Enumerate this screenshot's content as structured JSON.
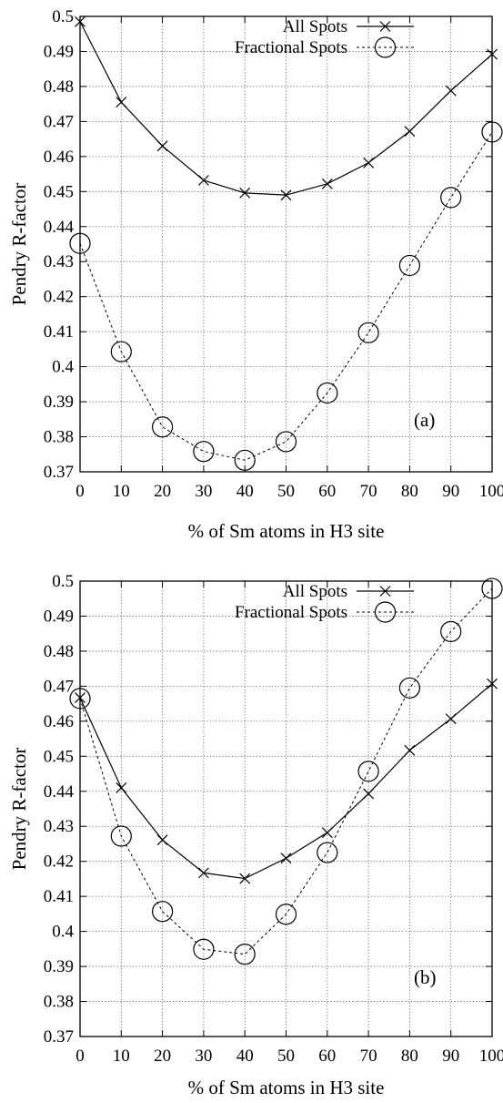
{
  "chart_data": [
    {
      "type": "line",
      "panel_label": "(a)",
      "xlabel": "% of Sm atoms in H3 site",
      "ylabel": "Pendry R-factor",
      "x": [
        0,
        10,
        20,
        30,
        40,
        50,
        60,
        70,
        80,
        90,
        100
      ],
      "xlim": [
        0,
        100
      ],
      "ylim": [
        0.37,
        0.5
      ],
      "x_ticks": [
        "0",
        "10",
        "20",
        "30",
        "40",
        "50",
        "60",
        "70",
        "80",
        "90",
        "100"
      ],
      "y_ticks": [
        "0.37",
        "0.38",
        "0.39",
        "0.4",
        "0.41",
        "0.42",
        "0.43",
        "0.44",
        "0.45",
        "0.46",
        "0.47",
        "0.48",
        "0.49",
        "0.5"
      ],
      "grid": true,
      "legend_position": "top-right",
      "series": [
        {
          "name": "All Spots",
          "marker": "x",
          "line": "solid",
          "values": [
            0.4985,
            0.4755,
            0.463,
            0.4532,
            0.4496,
            0.449,
            0.4522,
            0.4582,
            0.4672,
            0.4788,
            0.4892
          ]
        },
        {
          "name": "Fractional Spots",
          "marker": "circle",
          "line": "dashed",
          "values": [
            0.4352,
            0.4043,
            0.3828,
            0.3758,
            0.3733,
            0.3786,
            0.3925,
            0.4097,
            0.4289,
            0.4483,
            0.467
          ]
        }
      ]
    },
    {
      "type": "line",
      "panel_label": "(b)",
      "xlabel": "% of Sm atoms in H3 site",
      "ylabel": "Pendry R-factor",
      "x": [
        0,
        10,
        20,
        30,
        40,
        50,
        60,
        70,
        80,
        90,
        100
      ],
      "xlim": [
        0,
        100
      ],
      "ylim": [
        0.37,
        0.5
      ],
      "x_ticks": [
        "0",
        "10",
        "20",
        "30",
        "40",
        "50",
        "60",
        "70",
        "80",
        "90",
        "100"
      ],
      "y_ticks": [
        "0.37",
        "0.38",
        "0.39",
        "0.4",
        "0.41",
        "0.42",
        "0.43",
        "0.44",
        "0.45",
        "0.46",
        "0.47",
        "0.48",
        "0.49",
        "0.5"
      ],
      "grid": true,
      "legend_position": "top-right",
      "series": [
        {
          "name": "All Spots",
          "marker": "x",
          "line": "solid",
          "values": [
            0.4667,
            0.441,
            0.4261,
            0.4167,
            0.4151,
            0.4209,
            0.4282,
            0.4393,
            0.4517,
            0.4607,
            0.4707
          ]
        },
        {
          "name": "Fractional Spots",
          "marker": "circle",
          "line": "dashed",
          "values": [
            0.4665,
            0.4272,
            0.4057,
            0.3949,
            0.3935,
            0.4049,
            0.4225,
            0.4457,
            0.4695,
            0.4856,
            0.4979
          ]
        }
      ]
    }
  ]
}
